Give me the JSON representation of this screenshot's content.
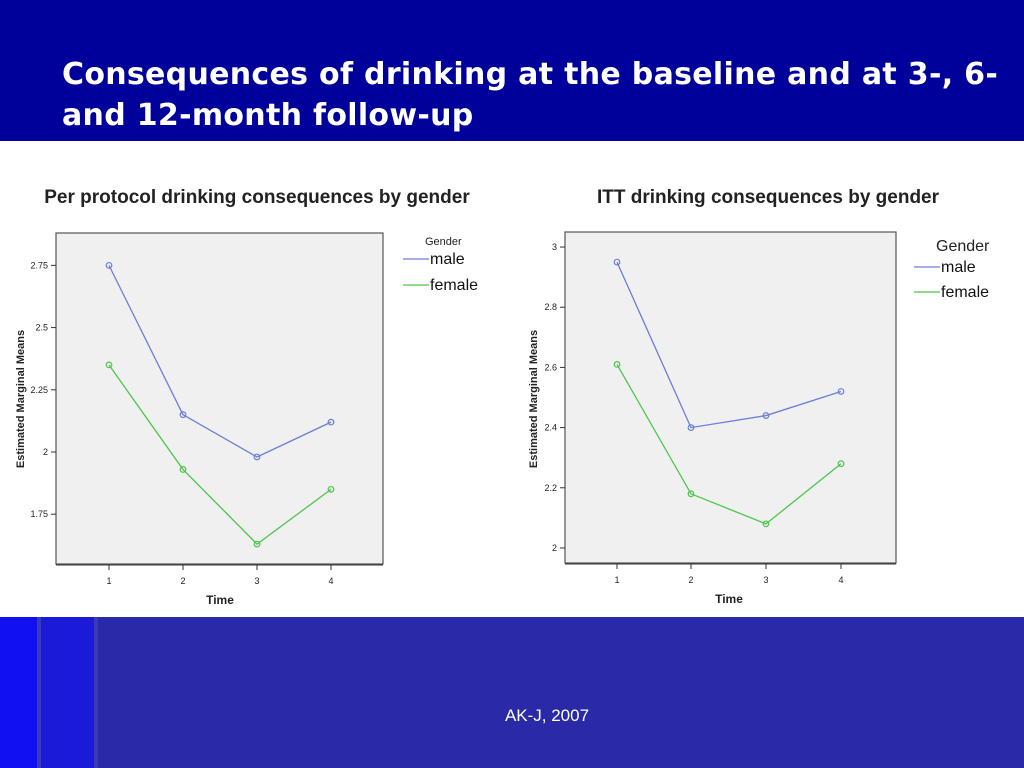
{
  "slide": {
    "title": "Consequences of drinking at the baseline and at 3-, 6- and 12-month follow-up",
    "footer": "AK-J, 2007"
  },
  "colors": {
    "male": "#6a7ed6",
    "female": "#4cc64c",
    "plot_bg": "#f0f0f0"
  },
  "chart_data": [
    {
      "type": "line",
      "title": "Per protocol drinking consequences by gender",
      "xlabel": "Time",
      "ylabel": "Estimated Marginal Means",
      "categories": [
        "1",
        "2",
        "3",
        "4"
      ],
      "yticks": [
        "1.75",
        "2",
        "2.25",
        "2.5",
        "2.75"
      ],
      "ylim": [
        1.55,
        2.88
      ],
      "legend": {
        "title": "Gender",
        "position": "right"
      },
      "grid": false,
      "series": [
        {
          "name": "male",
          "values": [
            2.75,
            2.15,
            1.98,
            2.12
          ]
        },
        {
          "name": "female",
          "values": [
            2.35,
            1.93,
            1.63,
            1.85
          ]
        }
      ]
    },
    {
      "type": "line",
      "title": "ITT drinking consequences by gender",
      "xlabel": "Time",
      "ylabel": "Estimated Marginal Means",
      "categories": [
        "1",
        "2",
        "3",
        "4"
      ],
      "yticks": [
        "2",
        "2.2",
        "2.4",
        "2.6",
        "2.8",
        "3"
      ],
      "ylim": [
        1.95,
        3.05
      ],
      "legend": {
        "title": "Gender",
        "position": "right"
      },
      "grid": false,
      "series": [
        {
          "name": "male",
          "values": [
            2.95,
            2.4,
            2.44,
            2.52
          ]
        },
        {
          "name": "female",
          "values": [
            2.61,
            2.18,
            2.08,
            2.28
          ]
        }
      ]
    }
  ]
}
